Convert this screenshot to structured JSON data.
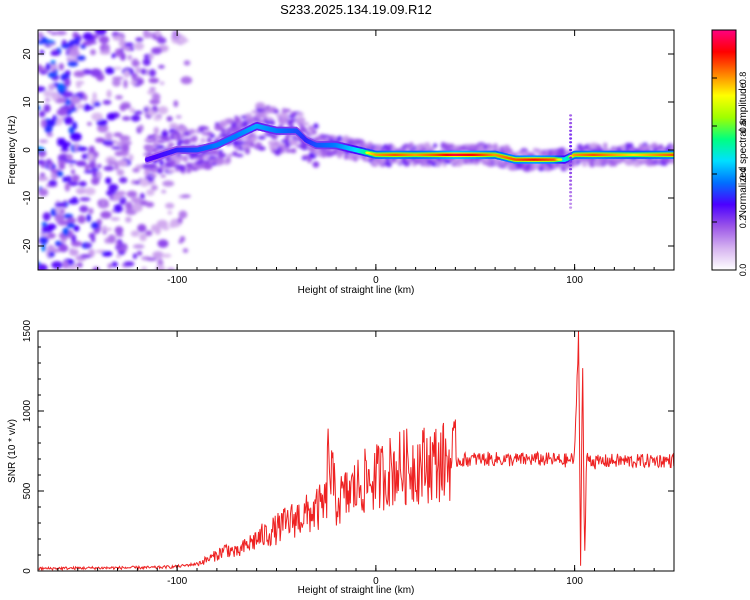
{
  "title": "S233.2025.134.19.09.R12",
  "chart_data": [
    {
      "type": "heatmap",
      "xlabel": "Height of straight line (km)",
      "ylabel": "Frequency (Hz)",
      "xlim": [
        -170,
        150
      ],
      "ylim": [
        -25,
        25
      ],
      "x_ticks": [
        -100,
        0,
        100
      ],
      "y_ticks": [
        -20,
        -10,
        0,
        10,
        20
      ],
      "colorbar": {
        "label": "Normalized spectral amplitude",
        "range": [
          0,
          1
        ],
        "ticks": [
          0.0,
          0.2,
          0.4,
          0.6,
          0.8
        ],
        "tick_labels": [
          "0.0",
          "0.2",
          "0.4",
          "0.6",
          "0.8"
        ],
        "colors": [
          "#ffffff",
          "#d6b3f0",
          "#9b55e8",
          "#4b00ff",
          "#0070ff",
          "#00e0ff",
          "#00ff80",
          "#a0ff00",
          "#ffff00",
          "#ff8000",
          "#ff0000",
          "#ff0080"
        ]
      },
      "ridge": {
        "x": [
          -115,
          -100,
          -90,
          -80,
          -70,
          -60,
          -50,
          -40,
          -35,
          -30,
          -20,
          -10,
          0,
          10,
          20,
          30,
          40,
          50,
          60,
          70,
          80,
          90,
          95,
          100,
          110,
          120,
          130,
          140,
          150
        ],
        "frequency": [
          -2,
          0,
          0,
          1,
          3,
          5,
          4,
          4,
          2,
          1,
          1,
          0,
          -1,
          -1,
          -1,
          -1,
          -1,
          -1,
          -1,
          -2,
          -2,
          -2,
          -2,
          -1,
          -1,
          -1,
          -1,
          -1,
          -1
        ],
        "amplitude": [
          0.35,
          0.4,
          0.45,
          0.5,
          0.5,
          0.55,
          0.5,
          0.45,
          0.4,
          0.45,
          0.5,
          0.6,
          0.8,
          0.85,
          0.8,
          0.85,
          0.95,
          0.9,
          0.8,
          0.85,
          0.9,
          0.85,
          0.6,
          0.8,
          0.85,
          0.8,
          0.75,
          0.8,
          0.85
        ]
      },
      "noise_region_x": [
        -170,
        -95
      ]
    },
    {
      "type": "line",
      "xlabel": "Height of straight line (km)",
      "ylabel": "SNR (10 * v/v)",
      "xlim": [
        -170,
        150
      ],
      "ylim": [
        0,
        1500
      ],
      "x_ticks": [
        -100,
        0,
        100
      ],
      "y_ticks": [
        0,
        500,
        1000,
        1500
      ],
      "series": [
        {
          "color": "#ee2222",
          "x": [
            -170,
            -150,
            -130,
            -110,
            -100,
            -90,
            -85,
            -80,
            -75,
            -70,
            -65,
            -60,
            -55,
            -50,
            -45,
            -40,
            -35,
            -30,
            -25,
            -24,
            -20,
            -15,
            -10,
            -5,
            0,
            5,
            10,
            20,
            30,
            40,
            50,
            60,
            70,
            80,
            90,
            95,
            100,
            102,
            103,
            104,
            105,
            106,
            108,
            110,
            120,
            130,
            140,
            150
          ],
          "values": [
            15,
            18,
            20,
            22,
            28,
            45,
            70,
            100,
            140,
            110,
            160,
            200,
            230,
            260,
            300,
            330,
            350,
            380,
            420,
            720,
            430,
            470,
            520,
            560,
            580,
            610,
            640,
            660,
            680,
            690,
            700,
            700,
            695,
            700,
            695,
            690,
            700,
            1500,
            50,
            1350,
            20,
            720,
            700,
            680,
            690,
            685,
            690,
            690
          ]
        }
      ]
    }
  ]
}
